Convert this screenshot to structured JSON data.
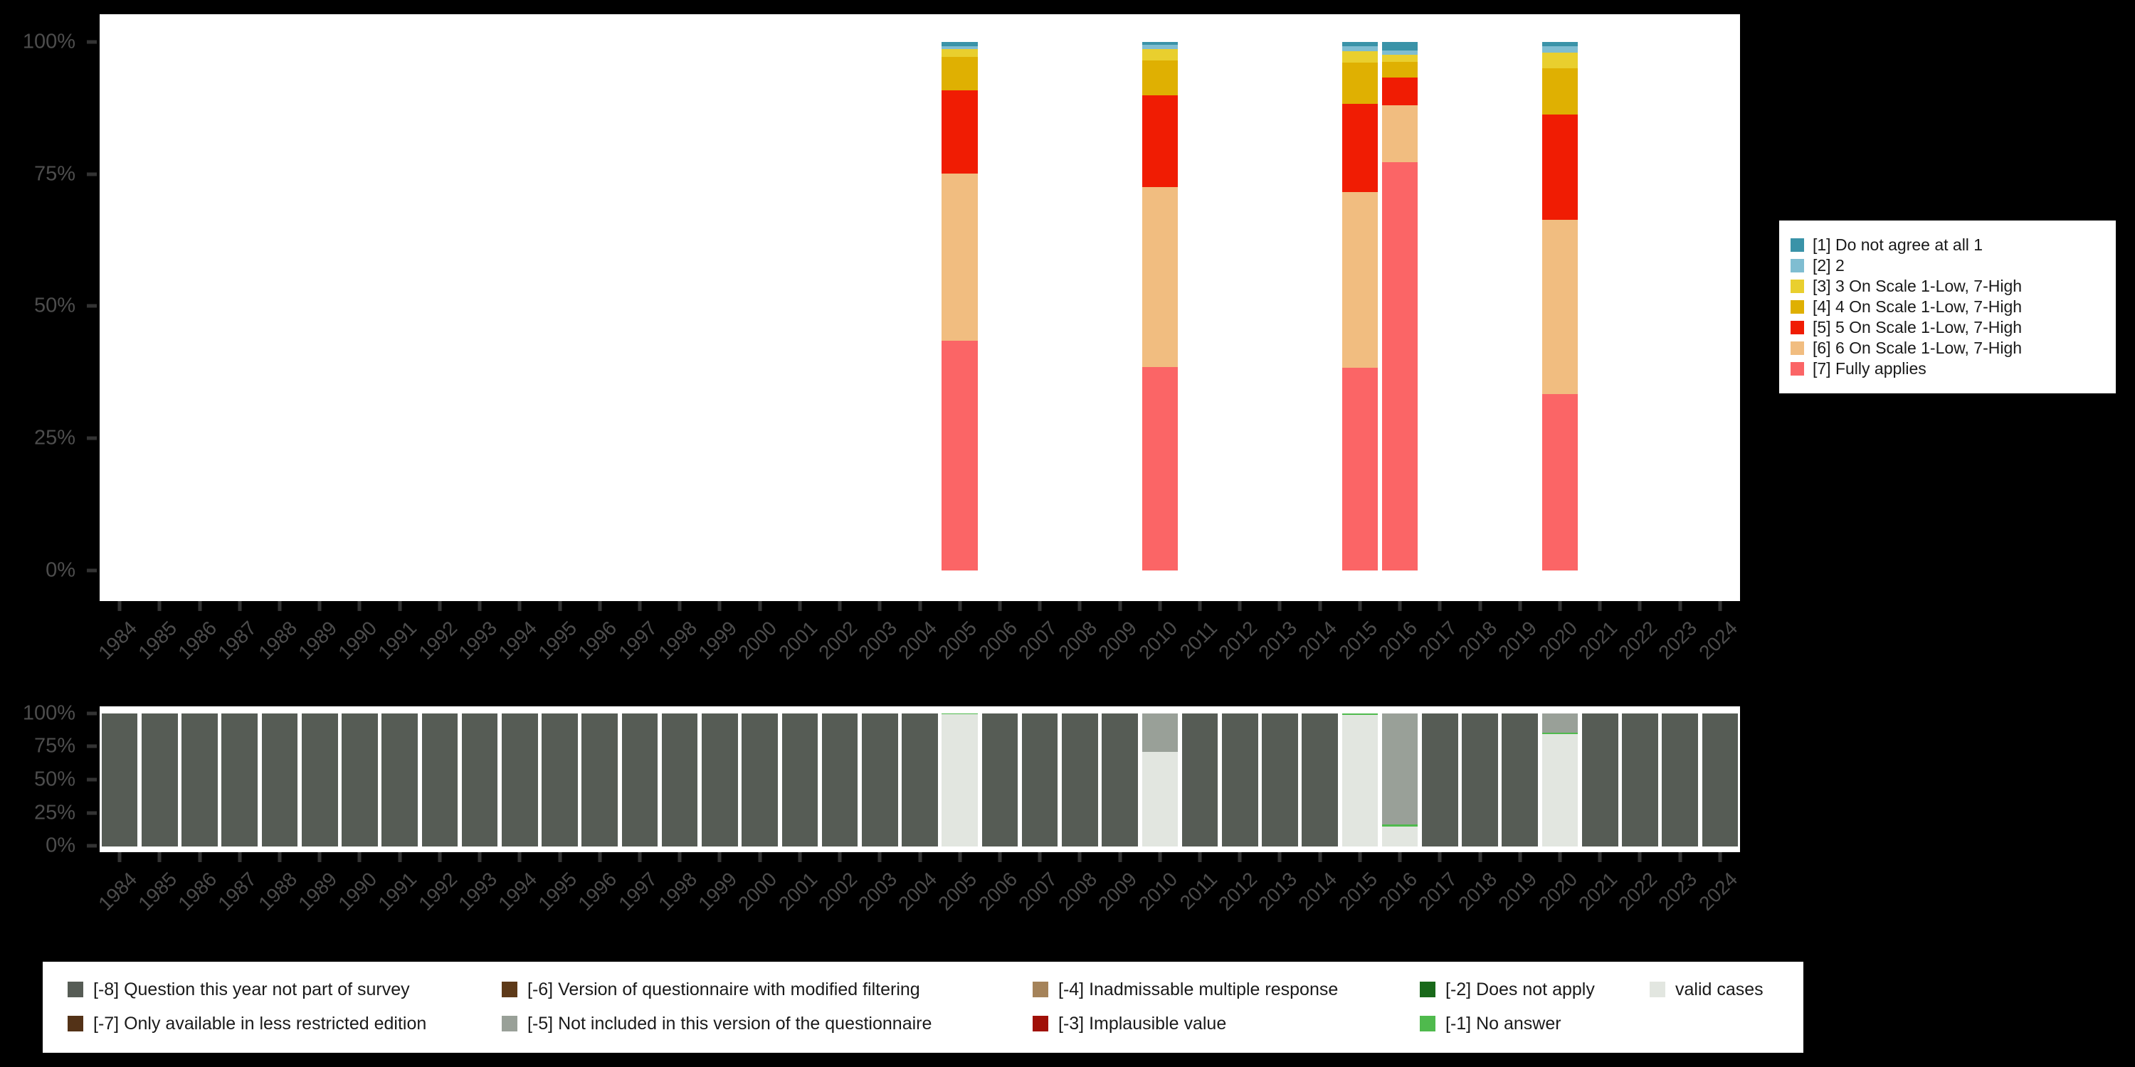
{
  "chart_data": [
    {
      "id": "agreement-scale-distribution",
      "type": "bar",
      "stacked": true,
      "title": "",
      "xlabel": "",
      "ylabel": "",
      "ylim": [
        0,
        100
      ],
      "grid": false,
      "legend_position": "right",
      "yticks": [
        "100%",
        "75%",
        "50%",
        "25%",
        "0%"
      ],
      "years": [
        "1984",
        "1985",
        "1986",
        "1987",
        "1988",
        "1989",
        "1990",
        "1991",
        "1992",
        "1993",
        "1994",
        "1995",
        "1996",
        "1997",
        "1998",
        "1999",
        "2000",
        "2001",
        "2002",
        "2003",
        "2004",
        "2005",
        "2006",
        "2007",
        "2008",
        "2009",
        "2010",
        "2011",
        "2012",
        "2013",
        "2014",
        "2015",
        "2016",
        "2017",
        "2018",
        "2019",
        "2020",
        "2021",
        "2022",
        "2023",
        "2024"
      ],
      "series": [
        {
          "label": "[1] Do not agree at all 1",
          "color": "#3A93A8",
          "values": {
            "2005": 0.8,
            "2010": 0.6,
            "2015": 0.8,
            "2016": 1.7,
            "2020": 0.8
          }
        },
        {
          "label": "[2] 2",
          "color": "#7FBDD1",
          "values": {
            "2005": 0.6,
            "2010": 0.8,
            "2015": 1.0,
            "2016": 0.7,
            "2020": 1.3
          }
        },
        {
          "label": "[3] 3 On Scale 1-Low, 7-High",
          "color": "#E9CF2E",
          "values": {
            "2005": 1.5,
            "2010": 2.1,
            "2015": 2.2,
            "2016": 1.4,
            "2020": 2.9
          }
        },
        {
          "label": "[4] 4 On Scale 1-Low, 7-High",
          "color": "#DFB002",
          "values": {
            "2005": 6.3,
            "2010": 6.6,
            "2015": 7.7,
            "2016": 2.9,
            "2020": 8.8
          }
        },
        {
          "label": "[5] 5 On Scale 1-Low, 7-High",
          "color": "#F01C03",
          "values": {
            "2005": 15.7,
            "2010": 17.4,
            "2015": 16.7,
            "2016": 5.3,
            "2020": 19.9
          }
        },
        {
          "label": "[6] 6 On Scale 1-Low, 7-High",
          "color": "#F1BD80",
          "values": {
            "2005": 31.6,
            "2010": 34.0,
            "2015": 33.3,
            "2016": 10.8,
            "2020": 33.0
          }
        },
        {
          "label": "[7] Fully applies",
          "color": "#FB6566",
          "values": {
            "2005": 43.5,
            "2010": 38.5,
            "2015": 38.3,
            "2016": 77.2,
            "2020": 33.3
          }
        }
      ]
    },
    {
      "id": "missing-values",
      "type": "bar",
      "stacked": true,
      "title": "",
      "ylim": [
        0,
        100
      ],
      "grid": false,
      "legend_position": "bottom",
      "yticks": [
        "100%",
        "75%",
        "50%",
        "25%",
        "0%"
      ],
      "years": [
        "1984",
        "1985",
        "1986",
        "1987",
        "1988",
        "1989",
        "1990",
        "1991",
        "1992",
        "1993",
        "1994",
        "1995",
        "1996",
        "1997",
        "1998",
        "1999",
        "2000",
        "2001",
        "2002",
        "2003",
        "2004",
        "2005",
        "2006",
        "2007",
        "2008",
        "2009",
        "2010",
        "2011",
        "2012",
        "2013",
        "2014",
        "2015",
        "2016",
        "2017",
        "2018",
        "2019",
        "2020",
        "2021",
        "2022",
        "2023",
        "2024"
      ],
      "series": [
        {
          "label": "[-8] Question this year not part of survey",
          "color": "#565C55",
          "values": {
            "1984": 100,
            "1985": 100,
            "1986": 100,
            "1987": 100,
            "1988": 100,
            "1989": 100,
            "1990": 100,
            "1991": 100,
            "1992": 100,
            "1993": 100,
            "1994": 100,
            "1995": 100,
            "1996": 100,
            "1997": 100,
            "1998": 100,
            "1999": 100,
            "2000": 100,
            "2001": 100,
            "2002": 100,
            "2003": 100,
            "2004": 100,
            "2006": 100,
            "2007": 100,
            "2008": 100,
            "2009": 100,
            "2011": 100,
            "2012": 100,
            "2013": 100,
            "2014": 100,
            "2017": 100,
            "2018": 100,
            "2019": 100,
            "2021": 100,
            "2022": 100,
            "2023": 100,
            "2024": 100
          }
        },
        {
          "label": "[-7] Only available in less restricted edition",
          "color": "#533217",
          "values": {}
        },
        {
          "label": "[-6] Version of questionnaire with modified filtering",
          "color": "#5E3A19",
          "values": {}
        },
        {
          "label": "[-5] Not included in this version of the questionnaire",
          "color": "#99A098",
          "values": {
            "2010": 29,
            "2016": 84,
            "2020": 14.5
          }
        },
        {
          "label": "[-4] Inadmissable multiple response",
          "color": "#A5835A",
          "values": {}
        },
        {
          "label": "[-3] Implausible value",
          "color": "#A01008",
          "values": {}
        },
        {
          "label": "[-2] Does not apply",
          "color": "#19691A",
          "values": {}
        },
        {
          "label": "[-1] No answer",
          "color": "#4FBA4D",
          "values": {
            "2005": 1,
            "2015": 1.5,
            "2016": 1.5,
            "2020": 1
          }
        },
        {
          "label": "valid cases",
          "color": "#E2E6E0",
          "values": {
            "2005": 99,
            "2010": 71,
            "2015": 98.5,
            "2016": 14.5,
            "2020": 84.5
          }
        }
      ]
    }
  ],
  "colors": {
    "background": "#000000",
    "plot_background": "#FFFFFF",
    "axis_text": "#4d4d4d",
    "tick_mark": "#333333",
    "legend_text": "#1a1a1a"
  }
}
